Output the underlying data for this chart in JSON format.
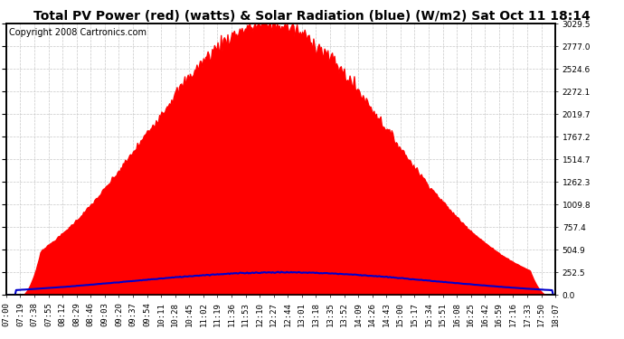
{
  "title": "Total PV Power (red) (watts) & Solar Radiation (blue) (W/m2) Sat Oct 11 18:14",
  "copyright": "Copyright 2008 Cartronics.com",
  "ylabel_right": [
    "3029.5",
    "2777.0",
    "2524.6",
    "2272.1",
    "2019.7",
    "1767.2",
    "1514.7",
    "1262.3",
    "1009.8",
    "757.4",
    "504.9",
    "252.5",
    "0.0"
  ],
  "yticks_right": [
    3029.5,
    2777.0,
    2524.6,
    2272.1,
    2019.7,
    1767.2,
    1514.7,
    1262.3,
    1009.8,
    757.4,
    504.9,
    252.5,
    0.0
  ],
  "x_labels": [
    "07:00",
    "07:19",
    "07:38",
    "07:55",
    "08:12",
    "08:29",
    "08:46",
    "09:03",
    "09:20",
    "09:37",
    "09:54",
    "10:11",
    "10:28",
    "10:45",
    "11:02",
    "11:19",
    "11:36",
    "11:53",
    "12:10",
    "12:27",
    "12:44",
    "13:01",
    "13:18",
    "13:35",
    "13:52",
    "14:09",
    "14:26",
    "14:43",
    "15:00",
    "15:17",
    "15:34",
    "15:51",
    "16:08",
    "16:25",
    "16:42",
    "16:59",
    "17:16",
    "17:33",
    "17:50",
    "18:07"
  ],
  "pv_color": "#ff0000",
  "solar_color": "#0000cc",
  "background_color": "#ffffff",
  "plot_bg_color": "#ffffff",
  "grid_color": "#c8c8c8",
  "border_color": "#000000",
  "title_fontsize": 10,
  "copyright_fontsize": 7,
  "tick_fontsize": 6.5,
  "ymax": 3029.5,
  "ymin": 0.0,
  "solar_peak": 252.5,
  "pv_peak": 3029.5
}
